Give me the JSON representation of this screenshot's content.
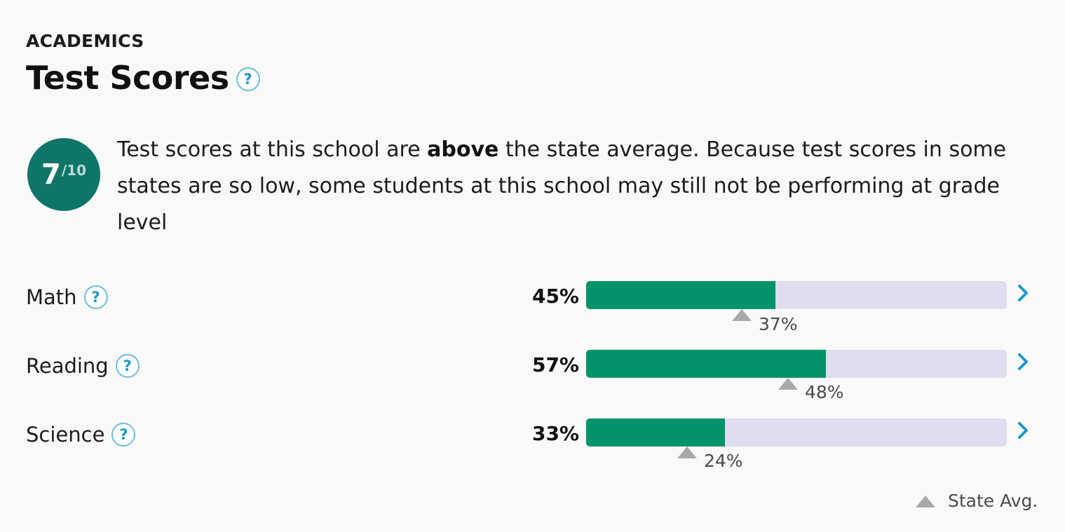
{
  "section": {
    "eyebrow": "ACADEMICS",
    "title": "Test Scores",
    "help_symbol": "?"
  },
  "rating": {
    "score": "7",
    "denominator": "/10",
    "color": "#0f7568"
  },
  "summary": {
    "before": "Test scores at this school are ",
    "emphasis": "above",
    "after": " the state average. Because test scores in some states are so low, some students at this school may still not be performing at grade level"
  },
  "subjects": [
    {
      "name": "Math",
      "school_pct": 45,
      "school_label": "45%",
      "state_pct": 37,
      "state_label": "37%"
    },
    {
      "name": "Reading",
      "school_pct": 57,
      "school_label": "57%",
      "state_pct": 48,
      "state_label": "48%"
    },
    {
      "name": "Science",
      "school_pct": 33,
      "school_label": "33%",
      "state_pct": 24,
      "state_label": "24%"
    }
  ],
  "legend": {
    "marker_icon": "triangle-up-icon",
    "label": "State Avg."
  },
  "colors": {
    "bar_fill": "#02936a",
    "bar_track": "#dedeef",
    "help_icon": "#1c98cf",
    "chevron": "#1c98cf",
    "state_marker": "#a9a9a9"
  }
}
